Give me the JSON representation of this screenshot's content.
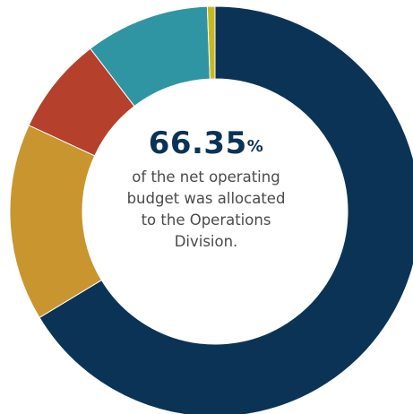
{
  "chart_data": {
    "type": "pie",
    "style": "donut",
    "slices": [
      {
        "value": 66.35,
        "color": "#0b3356"
      },
      {
        "value": 15.55,
        "color": "#c8952e"
      },
      {
        "value": 7.7,
        "color": "#b5402b"
      },
      {
        "value": 9.8,
        "color": "#2f95a3"
      },
      {
        "value": 0.6,
        "color": "#c8b820"
      }
    ],
    "center": {
      "value_number": "66.35",
      "value_sign": "%",
      "caption_lines": [
        "of the net operating",
        "budget was allocated",
        "to the Operations",
        "Division."
      ]
    }
  }
}
